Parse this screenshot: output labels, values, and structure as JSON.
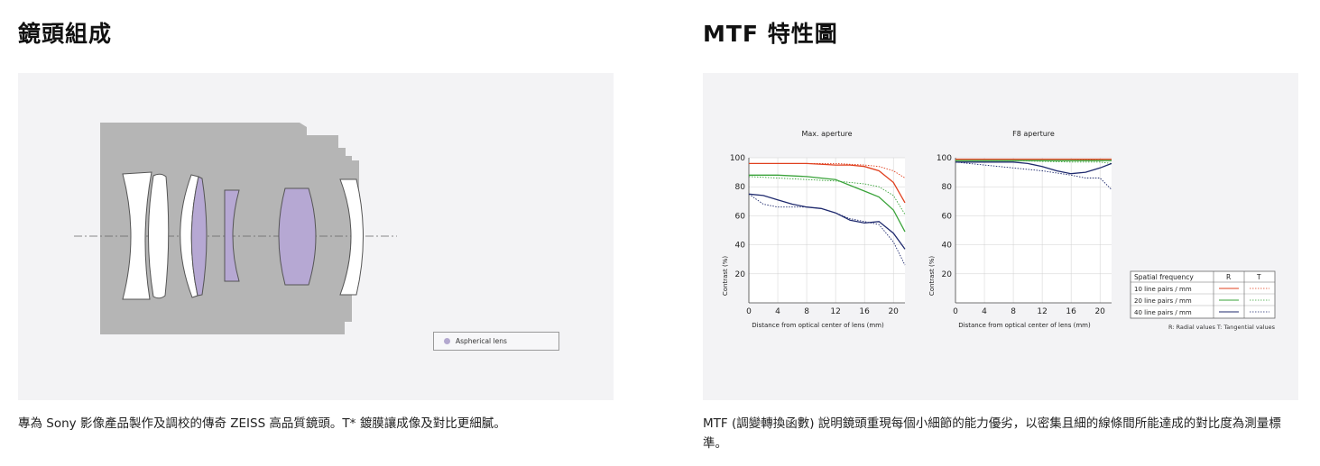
{
  "lens_section": {
    "title": "鏡頭組成",
    "legend_label": "Aspherical lens",
    "caption": "專為 Sony 影像產品製作及調校的傳奇 ZEISS 高品質鏡頭。T* 鍍膜讓成像及對比更細膩。",
    "colors": {
      "barrel": "#b5b5b5",
      "aspherical": "#b6a8d3",
      "lens": "#ffffff"
    }
  },
  "mtf_section": {
    "title": "MTF 特性圖",
    "caption": "MTF (調變轉換函數) 說明鏡頭重現每個小細節的能力優劣，以密集且細的線條間所能達成的對比度為測量標準。",
    "legend": {
      "header": {
        "col1": "Spatial frequency",
        "col2": "R",
        "col3": "T"
      },
      "rows": [
        "10 line pairs / mm",
        "20 line pairs / mm",
        "40 line pairs / mm"
      ],
      "footnote": "R: Radial values  T: Tangential values"
    }
  },
  "chart_data": [
    {
      "type": "line",
      "title": "Max. aperture",
      "xlabel": "Distance from optical center of lens (mm)",
      "ylabel": "Contrast (%)",
      "xlim": [
        0,
        21.6
      ],
      "ylim": [
        0,
        100
      ],
      "xticks": [
        0,
        4,
        8,
        12,
        16,
        20
      ],
      "yticks": [
        20,
        40,
        60,
        80,
        100
      ],
      "grid": true,
      "series": [
        {
          "name": "10 line pairs / mm",
          "kind": "R",
          "color": "#e0401f",
          "dashed": false,
          "x": [
            0,
            4,
            8,
            12,
            14,
            16,
            18,
            20,
            21.6
          ],
          "y": [
            96,
            96,
            96,
            95,
            95,
            94,
            91,
            83,
            69
          ]
        },
        {
          "name": "10 line pairs / mm",
          "kind": "T",
          "color": "#e0401f",
          "dashed": true,
          "x": [
            0,
            4,
            8,
            12,
            16,
            18,
            20,
            21.6
          ],
          "y": [
            96,
            96,
            96,
            96,
            95,
            94,
            91,
            86
          ]
        },
        {
          "name": "20 line pairs / mm",
          "kind": "R",
          "color": "#3aa33a",
          "dashed": false,
          "x": [
            0,
            4,
            8,
            12,
            14,
            16,
            18,
            20,
            21.6
          ],
          "y": [
            88,
            88,
            87,
            85,
            81,
            77,
            73,
            64,
            49
          ]
        },
        {
          "name": "20 line pairs / mm",
          "kind": "T",
          "color": "#3aa33a",
          "dashed": true,
          "x": [
            0,
            4,
            8,
            12,
            16,
            18,
            20,
            21.6
          ],
          "y": [
            87,
            86,
            85,
            84,
            82,
            80,
            74,
            61
          ]
        },
        {
          "name": "40 line pairs / mm",
          "kind": "R",
          "color": "#1f2a6e",
          "dashed": false,
          "x": [
            0,
            2,
            4,
            6,
            8,
            10,
            12,
            14,
            16,
            18,
            20,
            21.6
          ],
          "y": [
            75,
            74,
            71,
            68,
            66,
            65,
            62,
            57,
            55,
            56,
            48,
            37
          ]
        },
        {
          "name": "40 line pairs / mm",
          "kind": "T",
          "color": "#1f2a6e",
          "dashed": true,
          "x": [
            0,
            2,
            4,
            6,
            8,
            10,
            12,
            14,
            16,
            18,
            20,
            21.6
          ],
          "y": [
            75,
            68,
            66,
            66,
            66,
            65,
            62,
            58,
            56,
            54,
            42,
            26
          ]
        }
      ]
    },
    {
      "type": "line",
      "title": "F8 aperture",
      "xlabel": "Distance from optical center of lens (mm)",
      "ylabel": "Contrast (%)",
      "xlim": [
        0,
        21.6
      ],
      "ylim": [
        0,
        100
      ],
      "xticks": [
        0,
        4,
        8,
        12,
        16,
        20
      ],
      "yticks": [
        20,
        40,
        60,
        80,
        100
      ],
      "grid": true,
      "series": [
        {
          "name": "10 line pairs / mm",
          "kind": "R",
          "color": "#e0401f",
          "dashed": false,
          "x": [
            0,
            8,
            16,
            21.6
          ],
          "y": [
            99,
            99,
            99,
            99
          ]
        },
        {
          "name": "10 line pairs / mm",
          "kind": "T",
          "color": "#e0401f",
          "dashed": true,
          "x": [
            0,
            8,
            16,
            21.6
          ],
          "y": [
            99,
            99,
            99,
            98
          ]
        },
        {
          "name": "20 line pairs / mm",
          "kind": "R",
          "color": "#3aa33a",
          "dashed": false,
          "x": [
            0,
            8,
            16,
            21.6
          ],
          "y": [
            98,
            98,
            98,
            98
          ]
        },
        {
          "name": "20 line pairs / mm",
          "kind": "T",
          "color": "#3aa33a",
          "dashed": true,
          "x": [
            0,
            8,
            16,
            20,
            21.6
          ],
          "y": [
            98,
            98,
            97,
            97,
            96
          ]
        },
        {
          "name": "40 line pairs / mm",
          "kind": "R",
          "color": "#1f2a6e",
          "dashed": false,
          "x": [
            0,
            4,
            8,
            10,
            12,
            14,
            16,
            18,
            20,
            21.6
          ],
          "y": [
            97,
            97,
            97,
            96,
            94,
            91,
            89,
            90,
            93,
            96
          ]
        },
        {
          "name": "40 line pairs / mm",
          "kind": "T",
          "color": "#1f2a6e",
          "dashed": true,
          "x": [
            0,
            4,
            8,
            12,
            16,
            18,
            20,
            21.6
          ],
          "y": [
            97,
            95,
            93,
            91,
            88,
            86,
            86,
            78
          ]
        }
      ]
    }
  ]
}
